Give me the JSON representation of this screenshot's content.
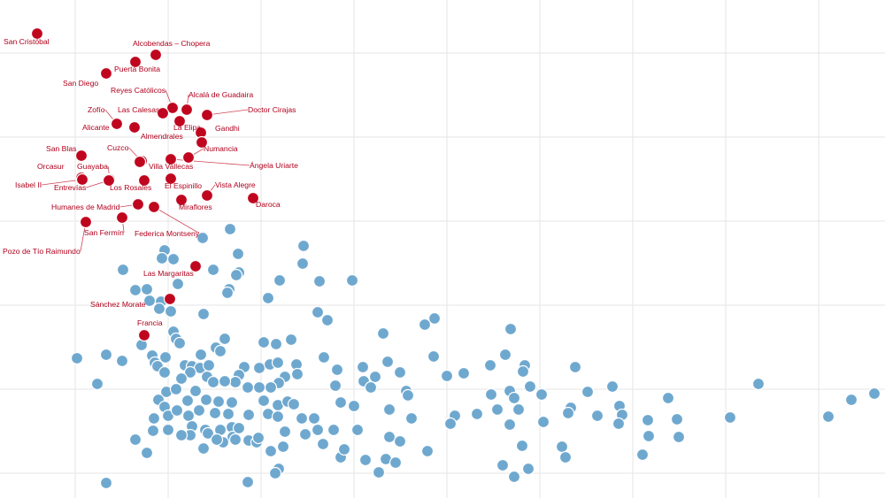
{
  "chart_data": {
    "type": "scatter",
    "title": "",
    "xlabel": "",
    "ylabel": "",
    "grid": true,
    "colors": {
      "highlight": "#c0061f",
      "others": "#6fa8cf",
      "grid": "#e6e6e6"
    },
    "highlighted": [
      {
        "name": "San Cristóbal",
        "x": 42,
        "y": 38,
        "label_side": "left"
      },
      {
        "name": "Alcobendas – Chopera",
        "x": 176,
        "y": 62,
        "label_side": "right"
      },
      {
        "name": "Puerta Bonita",
        "x": 153,
        "y": 70,
        "label_side": "right"
      },
      {
        "name": "San Diego",
        "x": 120,
        "y": 83,
        "label_side": "left"
      },
      {
        "name": "Reyes Católicos",
        "x": 195,
        "y": 122,
        "label_side": "left"
      },
      {
        "name": "Alcalá de Guadaira",
        "x": 211,
        "y": 124,
        "label_side": "right"
      },
      {
        "name": "Las Calesas",
        "x": 184,
        "y": 128,
        "label_side": "left"
      },
      {
        "name": "Doctor Cirajas",
        "x": 234,
        "y": 130,
        "label_side": "right"
      },
      {
        "name": "Zofío",
        "x": 132,
        "y": 140,
        "label_side": "left"
      },
      {
        "name": "La Elipa",
        "x": 203,
        "y": 137,
        "label_side": "right"
      },
      {
        "name": "Alicante",
        "x": 152,
        "y": 144,
        "label_side": "left"
      },
      {
        "name": "Gandhi",
        "x": 227,
        "y": 150,
        "label_side": "right"
      },
      {
        "name": "Almendrales",
        "x": 228,
        "y": 161,
        "label_side": "left"
      },
      {
        "name": "Numancia",
        "x": 213,
        "y": 178,
        "label_side": "right"
      },
      {
        "name": "Ángela Uriarte",
        "x": 193,
        "y": 180,
        "label_side": "right"
      },
      {
        "name": "San Blas",
        "x": 92,
        "y": 176,
        "label_side": "left"
      },
      {
        "name": "Cuzco",
        "x": 160,
        "y": 182,
        "label_side": "left"
      },
      {
        "name": "Villa Vallecas",
        "x": 158,
        "y": 183,
        "label_side": "right"
      },
      {
        "name": "Orcasur",
        "x": 92,
        "y": 201,
        "label_side": "left"
      },
      {
        "name": "Guayaba",
        "x": 124,
        "y": 203,
        "label_side": "left"
      },
      {
        "name": "Isabel II",
        "x": 93,
        "y": 203,
        "label_side": "left"
      },
      {
        "name": "El Espinillo",
        "x": 193,
        "y": 202,
        "label_side": "right"
      },
      {
        "name": "Vista Alegre",
        "x": 234,
        "y": 221,
        "label_side": "right"
      },
      {
        "name": "Entrevías",
        "x": 123,
        "y": 204,
        "label_side": "left"
      },
      {
        "name": "Los Rosales",
        "x": 163,
        "y": 204,
        "label_side": "left"
      },
      {
        "name": "Miraflores",
        "x": 205,
        "y": 226,
        "label_side": "right"
      },
      {
        "name": "Daroca",
        "x": 286,
        "y": 224,
        "label_side": "right"
      },
      {
        "name": "Humanes de Madrid",
        "x": 156,
        "y": 231,
        "label_side": "left"
      },
      {
        "name": "Federica Montseny",
        "x": 174,
        "y": 234,
        "label_side": "right"
      },
      {
        "name": "San Fermín",
        "x": 138,
        "y": 246,
        "label_side": "left"
      },
      {
        "name": "Pozo de Tío Raimundo",
        "x": 97,
        "y": 251,
        "label_side": "left"
      },
      {
        "name": "Las Margaritas",
        "x": 221,
        "y": 301,
        "label_side": "left"
      },
      {
        "name": "Sánchez Morate",
        "x": 192,
        "y": 338,
        "label_side": "left"
      },
      {
        "name": "Francia",
        "x": 163,
        "y": 379,
        "label_side": "left"
      }
    ],
    "others": [
      [
        260,
        259
      ],
      [
        229,
        269
      ],
      [
        343,
        278
      ],
      [
        269,
        287
      ],
      [
        186,
        283
      ],
      [
        183,
        292
      ],
      [
        196,
        293
      ],
      [
        342,
        298
      ],
      [
        139,
        305
      ],
      [
        241,
        305
      ],
      [
        270,
        308
      ],
      [
        267,
        311
      ],
      [
        316,
        317
      ],
      [
        361,
        318
      ],
      [
        398,
        317
      ],
      [
        201,
        321
      ],
      [
        153,
        328
      ],
      [
        166,
        327
      ],
      [
        259,
        327
      ],
      [
        257,
        331
      ],
      [
        169,
        340
      ],
      [
        182,
        341
      ],
      [
        303,
        337
      ],
      [
        180,
        349
      ],
      [
        193,
        352
      ],
      [
        230,
        355
      ],
      [
        359,
        353
      ],
      [
        370,
        362
      ],
      [
        480,
        367
      ],
      [
        491,
        360
      ],
      [
        577,
        372
      ],
      [
        196,
        375
      ],
      [
        433,
        377
      ],
      [
        199,
        383
      ],
      [
        203,
        388
      ],
      [
        329,
        384
      ],
      [
        254,
        383
      ],
      [
        298,
        387
      ],
      [
        312,
        389
      ],
      [
        244,
        393
      ],
      [
        227,
        401
      ],
      [
        249,
        397
      ],
      [
        87,
        405
      ],
      [
        120,
        401
      ],
      [
        138,
        408
      ],
      [
        160,
        390
      ],
      [
        172,
        402
      ],
      [
        187,
        404
      ],
      [
        175,
        410
      ],
      [
        178,
        414
      ],
      [
        186,
        421
      ],
      [
        209,
        413
      ],
      [
        217,
        414
      ],
      [
        226,
        416
      ],
      [
        236,
        413
      ],
      [
        276,
        415
      ],
      [
        293,
        416
      ],
      [
        305,
        412
      ],
      [
        314,
        410
      ],
      [
        335,
        412
      ],
      [
        366,
        404
      ],
      [
        410,
        415
      ],
      [
        438,
        409
      ],
      [
        490,
        403
      ],
      [
        571,
        401
      ],
      [
        554,
        413
      ],
      [
        593,
        413
      ],
      [
        591,
        420
      ],
      [
        650,
        415
      ],
      [
        524,
        422
      ],
      [
        505,
        425
      ],
      [
        452,
        421
      ],
      [
        424,
        426
      ],
      [
        381,
        418
      ],
      [
        322,
        426
      ],
      [
        315,
        433
      ],
      [
        336,
        423
      ],
      [
        270,
        424
      ],
      [
        266,
        432
      ],
      [
        280,
        438
      ],
      [
        293,
        438
      ],
      [
        306,
        438
      ],
      [
        215,
        421
      ],
      [
        234,
        426
      ],
      [
        241,
        432
      ],
      [
        254,
        431
      ],
      [
        110,
        434
      ],
      [
        188,
        443
      ],
      [
        199,
        440
      ],
      [
        205,
        428
      ],
      [
        221,
        442
      ],
      [
        179,
        452
      ],
      [
        186,
        460
      ],
      [
        212,
        453
      ],
      [
        233,
        452
      ],
      [
        247,
        454
      ],
      [
        262,
        455
      ],
      [
        298,
        453
      ],
      [
        314,
        458
      ],
      [
        325,
        454
      ],
      [
        332,
        457
      ],
      [
        379,
        436
      ],
      [
        411,
        431
      ],
      [
        419,
        438
      ],
      [
        459,
        442
      ],
      [
        461,
        447
      ],
      [
        385,
        455
      ],
      [
        400,
        459
      ],
      [
        440,
        463
      ],
      [
        465,
        473
      ],
      [
        514,
        470
      ],
      [
        509,
        479
      ],
      [
        539,
        468
      ],
      [
        555,
        446
      ],
      [
        576,
        442
      ],
      [
        581,
        450
      ],
      [
        599,
        437
      ],
      [
        612,
        446
      ],
      [
        664,
        443
      ],
      [
        692,
        437
      ],
      [
        755,
        450
      ],
      [
        857,
        434
      ],
      [
        988,
        445
      ],
      [
        962,
        452
      ],
      [
        936,
        471
      ],
      [
        825,
        472
      ],
      [
        765,
        474
      ],
      [
        732,
        475
      ],
      [
        700,
        459
      ],
      [
        703,
        469
      ],
      [
        699,
        479
      ],
      [
        675,
        470
      ],
      [
        645,
        461
      ],
      [
        642,
        467
      ],
      [
        614,
        477
      ],
      [
        586,
        463
      ],
      [
        576,
        480
      ],
      [
        562,
        463
      ],
      [
        174,
        473
      ],
      [
        190,
        470
      ],
      [
        200,
        464
      ],
      [
        213,
        470
      ],
      [
        225,
        464
      ],
      [
        243,
        467
      ],
      [
        258,
        468
      ],
      [
        281,
        469
      ],
      [
        303,
        468
      ],
      [
        314,
        471
      ],
      [
        341,
        473
      ],
      [
        355,
        473
      ],
      [
        377,
        486
      ],
      [
        404,
        486
      ],
      [
        440,
        494
      ],
      [
        452,
        499
      ],
      [
        483,
        510
      ],
      [
        436,
        519
      ],
      [
        447,
        523
      ],
      [
        590,
        504
      ],
      [
        635,
        505
      ],
      [
        639,
        517
      ],
      [
        726,
        514
      ],
      [
        733,
        493
      ],
      [
        767,
        494
      ],
      [
        153,
        497
      ],
      [
        166,
        512
      ],
      [
        190,
        486
      ],
      [
        217,
        482
      ],
      [
        215,
        492
      ],
      [
        232,
        486
      ],
      [
        235,
        490
      ],
      [
        249,
        486
      ],
      [
        262,
        483
      ],
      [
        263,
        494
      ],
      [
        252,
        500
      ],
      [
        266,
        497
      ],
      [
        281,
        498
      ],
      [
        290,
        500
      ],
      [
        292,
        495
      ],
      [
        306,
        510
      ],
      [
        320,
        505
      ],
      [
        322,
        488
      ],
      [
        230,
        507
      ],
      [
        345,
        491
      ],
      [
        359,
        486
      ],
      [
        385,
        517
      ],
      [
        389,
        508
      ],
      [
        413,
        520
      ],
      [
        315,
        530
      ],
      [
        311,
        535
      ],
      [
        120,
        546
      ],
      [
        280,
        545
      ],
      [
        428,
        534
      ],
      [
        568,
        526
      ],
      [
        581,
        539
      ],
      [
        597,
        530
      ],
      [
        173,
        487
      ],
      [
        205,
        492
      ],
      [
        245,
        497
      ],
      [
        270,
        484
      ],
      [
        365,
        502
      ]
    ]
  }
}
